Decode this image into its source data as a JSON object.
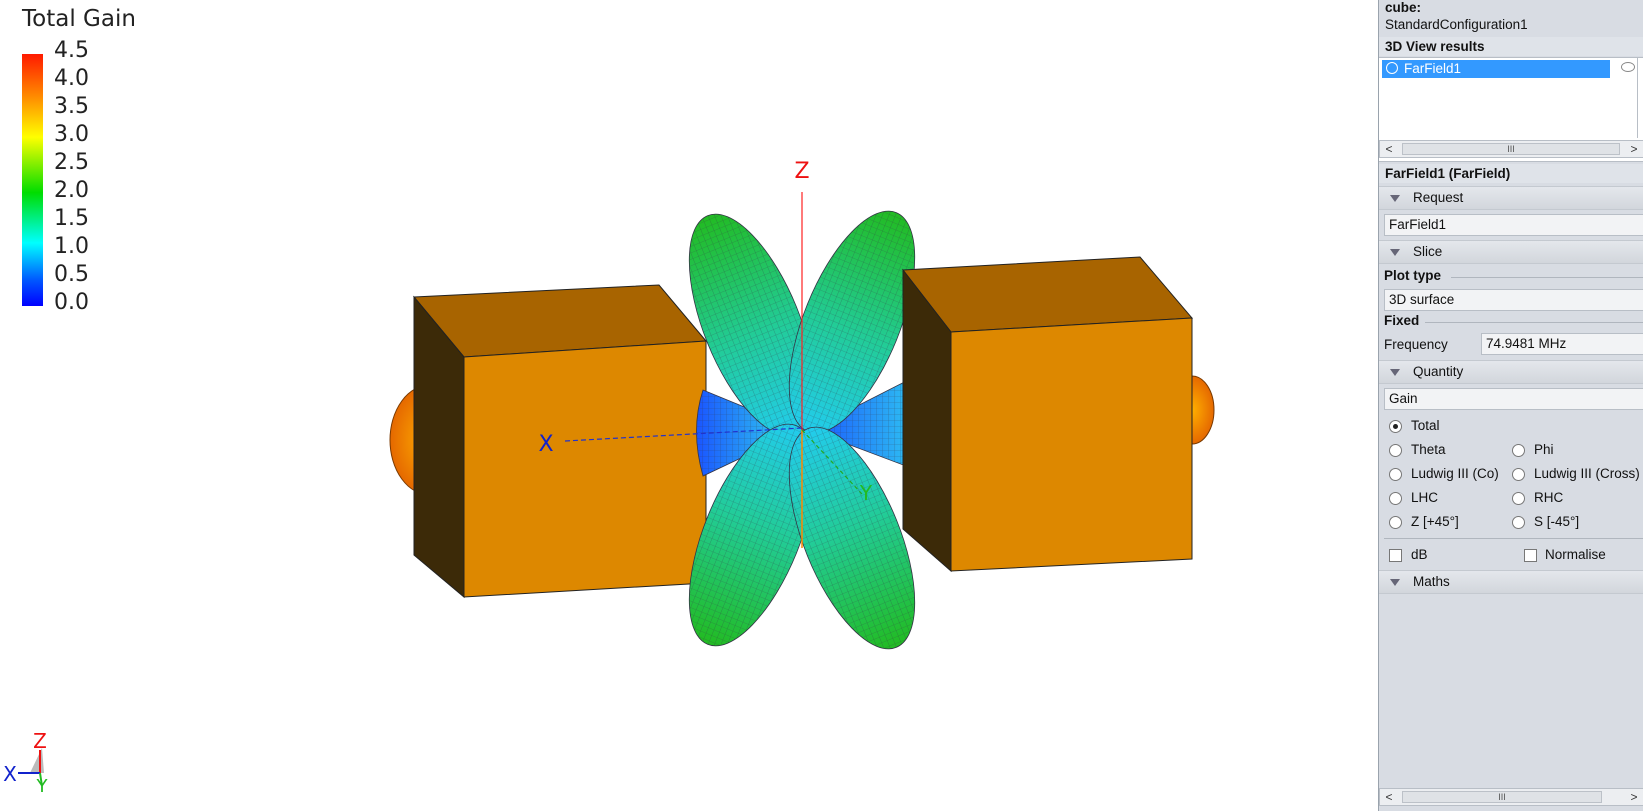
{
  "legend": {
    "title": "Total Gain",
    "ticks": [
      "4.5",
      "4.0",
      "3.5",
      "3.0",
      "2.5",
      "2.0",
      "1.5",
      "1.0",
      "0.5",
      "0.0"
    ]
  },
  "axes": {
    "z_label": "Z",
    "x_label": "X",
    "y_label": "Y"
  },
  "triad": {
    "z": "Z",
    "x": "X",
    "y": "Y"
  },
  "panel": {
    "config_label": "cube:",
    "config_value": "StandardConfiguration1",
    "results_header": "3D View results",
    "results_item": "FarField1",
    "props_header": "FarField1 (FarField)",
    "request_label": "Request",
    "request_value": "FarField1",
    "slice_label": "Slice",
    "plot_type_label": "Plot type",
    "plot_type_value": "3D surface",
    "fixed_label": "Fixed",
    "frequency_label": "Frequency",
    "frequency_value": "74.9481 MHz",
    "quantity_label": "Quantity",
    "quantity_value": "Gain",
    "radios": {
      "total": "Total",
      "theta": "Theta",
      "phi": "Phi",
      "ludwig_co": "Ludwig III (Co)",
      "ludwig_cross": "Ludwig III (Cross)",
      "lhc": "LHC",
      "rhc": "RHC",
      "z45": "Z [+45°]",
      "s45": "S [-45°]"
    },
    "db_label": "dB",
    "normalise_label": "Normalise",
    "maths_label": "Maths",
    "scroll_thumb": "III"
  },
  "colors": {
    "cube": "#dd8800",
    "cube_top": "#a86400",
    "cube_side": "#3c2a08",
    "accent": "#3399ff"
  }
}
